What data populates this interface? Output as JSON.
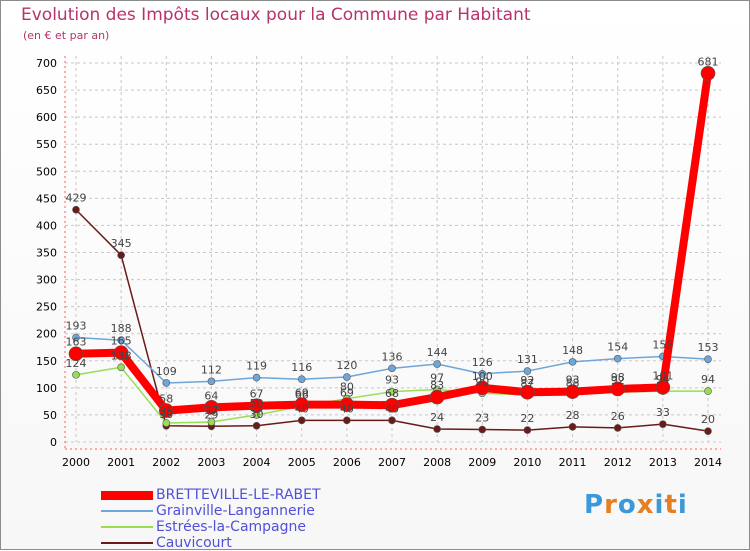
{
  "title": "Evolution des Impôts locaux pour la Commune par Habitant",
  "subtitle": "(en € et par an)",
  "logo": {
    "text": "Proxiti",
    "letters": [
      "P",
      "r",
      "o",
      "x",
      "i",
      "t",
      "i"
    ],
    "colors": [
      "#3a9ad9",
      "#e67e22",
      "#3a9ad9",
      "#e67e22",
      "#3a9ad9",
      "#e67e22",
      "#3a9ad9"
    ]
  },
  "chart_data": {
    "type": "line",
    "categories": [
      "2000",
      "2001",
      "2002",
      "2003",
      "2004",
      "2005",
      "2006",
      "2007",
      "2008",
      "2009",
      "2010",
      "2011",
      "2012",
      "2013",
      "2014"
    ],
    "ylim": [
      0,
      700
    ],
    "yticks": [
      0,
      50,
      100,
      150,
      200,
      250,
      300,
      350,
      400,
      450,
      500,
      550,
      600,
      650,
      700
    ],
    "grid": true,
    "legend_position": "bottom-left",
    "series": [
      {
        "name": "BRETTEVILLE-LE-RABET",
        "color": "#ff0000",
        "width": 8,
        "marker": 7,
        "values": [
          163,
          165,
          58,
          64,
          67,
          69,
          69,
          68,
          83,
          100,
          92,
          93,
          98,
          101,
          681
        ],
        "labels": [
          "163",
          "165",
          "58",
          "64",
          "67",
          "69",
          "69",
          "68",
          "83",
          "100",
          "92",
          "93",
          "98",
          "101",
          "681"
        ]
      },
      {
        "name": "Grainville-Langannerie",
        "color": "#6da6d8",
        "width": 1.5,
        "marker": 3.5,
        "values": [
          193,
          188,
          109,
          112,
          119,
          116,
          120,
          136,
          144,
          126,
          131,
          148,
          154,
          158,
          153
        ],
        "labels": [
          "193",
          "188",
          "109",
          "112",
          "119",
          "116",
          "120",
          "136",
          "144",
          "126",
          "131",
          "148",
          "154",
          "158",
          "153"
        ]
      },
      {
        "name": "Estrées-la-Campagne",
        "color": "#99dd55",
        "width": 1.5,
        "marker": 3.5,
        "values": [
          124,
          138,
          35,
          37,
          50,
          66,
          80,
          93,
          97,
          90,
          87,
          88,
          92,
          94,
          94
        ],
        "labels": [
          "124",
          "138",
          "35",
          "37",
          "50",
          "66",
          "80",
          "93",
          "97",
          "90",
          "87",
          "88",
          "92",
          "94",
          "94"
        ]
      },
      {
        "name": "Cauvicourt",
        "color": "#6b1a1a",
        "width": 1.5,
        "marker": 3.5,
        "values": [
          429,
          345,
          30,
          29,
          30,
          40,
          40,
          40,
          24,
          23,
          22,
          28,
          26,
          33,
          20
        ],
        "labels": [
          "429",
          "345",
          "30",
          "29",
          "30",
          "40",
          "40",
          "40",
          "24",
          "23",
          "22",
          "28",
          "26",
          "33",
          "20"
        ]
      }
    ]
  }
}
